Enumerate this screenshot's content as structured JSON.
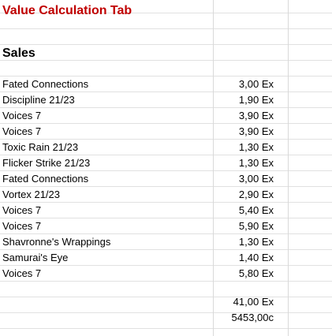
{
  "title": {
    "text": "Value Calculation Tab",
    "color": "#c00000"
  },
  "section": {
    "text": "Sales"
  },
  "rows": [
    {
      "item": "Fated Connections",
      "value": "3,00 Ex"
    },
    {
      "item": "Discipline 21/23",
      "value": "1,90 Ex"
    },
    {
      "item": "Voices 7",
      "value": "3,90 Ex"
    },
    {
      "item": "Voices 7",
      "value": "3,90 Ex"
    },
    {
      "item": "Toxic Rain 21/23",
      "value": "1,30 Ex"
    },
    {
      "item": "Flicker Strike 21/23",
      "value": "1,30 Ex"
    },
    {
      "item": "Fated Connections",
      "value": "3,00 Ex"
    },
    {
      "item": "Vortex 21/23",
      "value": "2,90 Ex"
    },
    {
      "item": "Voices 7",
      "value": "5,40 Ex"
    },
    {
      "item": "Voices 7",
      "value": "5,90 Ex"
    },
    {
      "item": "Shavronne's Wrappings",
      "value": "1,30 Ex"
    },
    {
      "item": "Samurai's Eye",
      "value": "1,40 Ex"
    },
    {
      "item": "Voices 7",
      "value": "5,80 Ex"
    }
  ],
  "totals": {
    "ex": "41,00 Ex",
    "chaos": "5453,00c"
  }
}
